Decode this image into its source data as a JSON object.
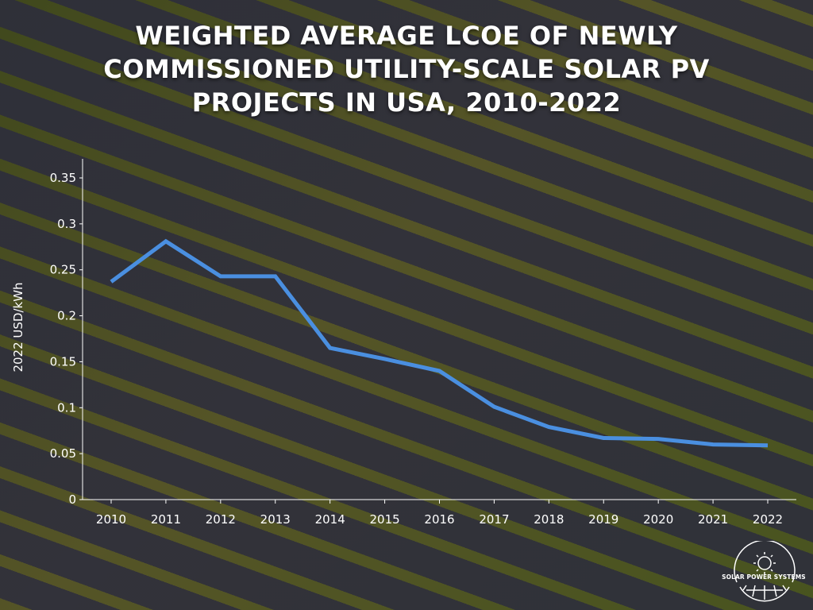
{
  "chart_data": {
    "type": "line",
    "title": "Weighted average LCOE of newly commissioned utility-scale solar PV projects in USA, 2010-2022",
    "xlabel": "",
    "ylabel": "2022 USD/kWh",
    "categories": [
      "2010",
      "2011",
      "2012",
      "2013",
      "2014",
      "2015",
      "2016",
      "2017",
      "2018",
      "2019",
      "2020",
      "2021",
      "2022"
    ],
    "values": [
      0.237,
      0.281,
      0.243,
      0.243,
      0.165,
      0.153,
      0.14,
      0.101,
      0.079,
      0.067,
      0.066,
      0.06,
      0.059
    ],
    "ylim": [
      0,
      0.35
    ],
    "yticks": [
      "0",
      "0.05",
      "0.1",
      "0.15",
      "0.2",
      "0.25",
      "0.3",
      "0.35"
    ],
    "grid": false,
    "line_color": "#4a8fe0"
  },
  "branding": {
    "logo_text": "SOLAR POWER SYSTEMS",
    "logo_icon": "sun-globe-icon"
  }
}
